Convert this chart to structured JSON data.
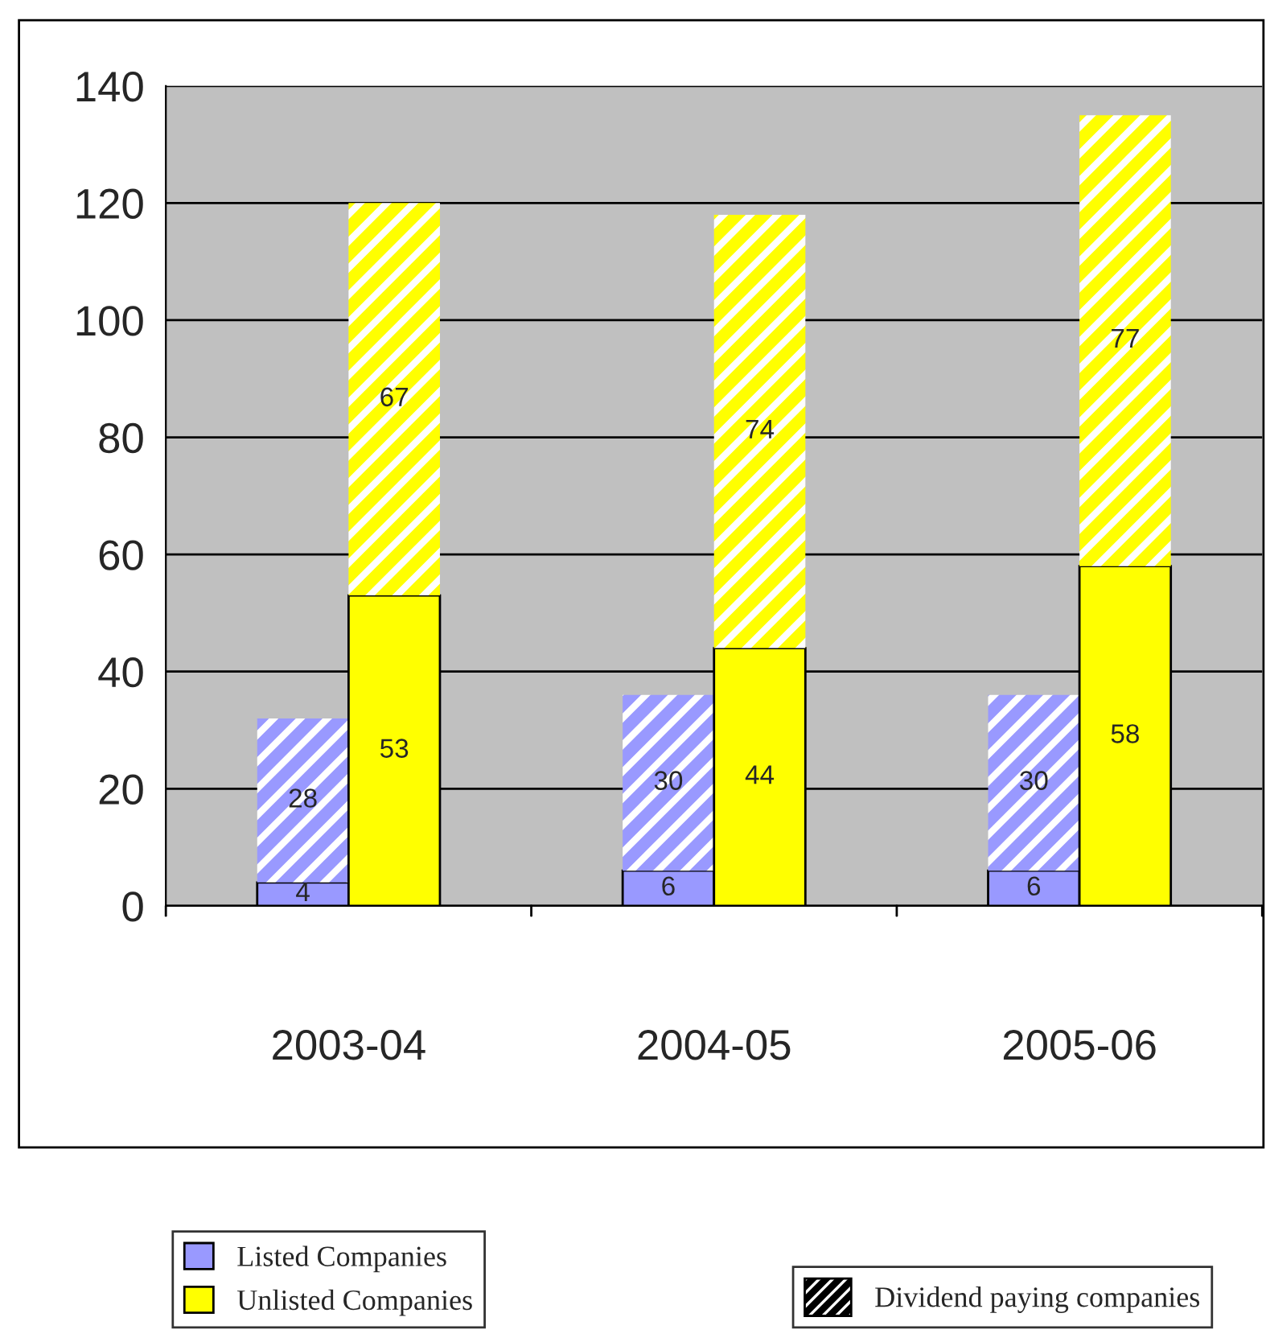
{
  "chart_data": {
    "type": "bar",
    "stacked": true,
    "categories": [
      null,
      "2003-04",
      null,
      null,
      null,
      "2004-05",
      null,
      null,
      null,
      "2005-06",
      null,
      null
    ],
    "series": [
      {
        "name": "Listed Companies",
        "color": "#9999ff",
        "values": [
          null,
          4,
          null,
          null,
          null,
          6,
          null,
          null,
          null,
          6,
          null,
          null
        ]
      },
      {
        "color": "#9999ff",
        "values": [
          null,
          28,
          null,
          null,
          null,
          30,
          null,
          null,
          null,
          30,
          null,
          null
        ]
      },
      {
        "name": "Unlisted Companies",
        "color": "#ffff00",
        "values": [
          null,
          null,
          53,
          null,
          null,
          null,
          44,
          null,
          null,
          null,
          58,
          null
        ]
      },
      {
        "color": "#ffff00",
        "values": [
          null,
          null,
          67,
          null,
          null,
          null,
          74,
          null,
          null,
          null,
          77,
          null
        ]
      }
    ],
    "ylim": [
      0,
      140
    ],
    "yticks": [
      0,
      20,
      40,
      60,
      80,
      100,
      120,
      140
    ],
    "grid": "y",
    "data_labels": true,
    "legend": "bottom",
    "annotations": [
      "Dividend paying companies"
    ]
  }
}
